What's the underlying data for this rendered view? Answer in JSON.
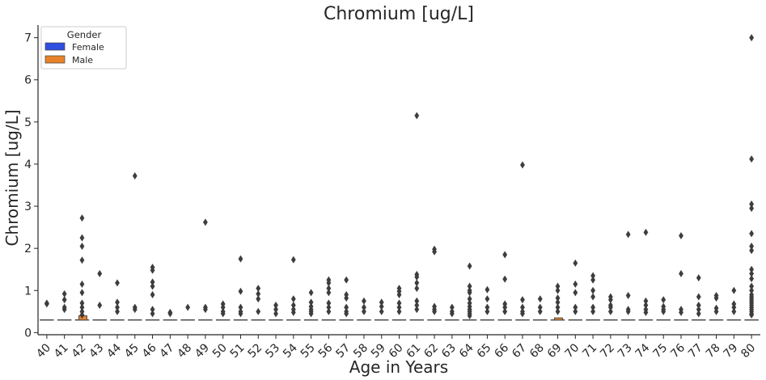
{
  "chart_data": {
    "type": "box",
    "title": "Chromium [ug/L]",
    "xlabel": "Age in Years",
    "ylabel": "Chromium [ug/L]",
    "ylim": [
      -0.05,
      7.3
    ],
    "yticks": [
      0,
      1,
      2,
      3,
      4,
      5,
      6,
      7
    ],
    "categories": [
      "40",
      "41",
      "42",
      "43",
      "44",
      "45",
      "46",
      "47",
      "48",
      "49",
      "50",
      "51",
      "52",
      "53",
      "54",
      "55",
      "56",
      "57",
      "58",
      "59",
      "60",
      "61",
      "62",
      "63",
      "64",
      "65",
      "66",
      "67",
      "68",
      "69",
      "70",
      "71",
      "72",
      "73",
      "74",
      "75",
      "76",
      "77",
      "78",
      "79",
      "80"
    ],
    "baseline": 0.3,
    "legend": {
      "title": "Gender",
      "placement": "upper left",
      "entries": [
        {
          "name": "Female",
          "color": "#2f4fe0"
        },
        {
          "name": "Male",
          "color": "#e8822a"
        }
      ]
    },
    "boxes": [
      {
        "category": "42",
        "series": "Male",
        "q1": 0.3,
        "q3": 0.4
      },
      {
        "category": "69",
        "series": "Male",
        "q1": 0.3,
        "q3": 0.35
      }
    ],
    "outliers": {
      "40": [
        0.7,
        0.68
      ],
      "41": [
        0.78,
        0.6,
        0.92,
        0.55
      ],
      "42": [
        2.72,
        2.25,
        2.05,
        1.72,
        1.15,
        0.95,
        0.7,
        0.6,
        0.5,
        0.42
      ],
      "43": [
        1.4,
        0.65
      ],
      "44": [
        1.18,
        0.72,
        0.6,
        0.5
      ],
      "45": [
        3.72,
        0.6,
        0.55
      ],
      "46": [
        1.55,
        1.48,
        1.2,
        1.1,
        0.9,
        0.55,
        0.45
      ],
      "47": [
        0.48,
        0.45
      ],
      "48": [
        0.6
      ],
      "49": [
        2.62,
        0.6,
        0.55
      ],
      "50": [
        0.68,
        0.6,
        0.5,
        0.45
      ],
      "51": [
        1.75,
        0.98,
        0.6,
        0.5,
        0.45
      ],
      "52": [
        1.05,
        0.92,
        0.8,
        0.5
      ],
      "53": [
        0.65,
        0.55,
        0.45
      ],
      "54": [
        1.73,
        0.8,
        0.65,
        0.55,
        0.48
      ],
      "55": [
        0.95,
        0.72,
        0.62,
        0.55,
        0.5,
        0.45
      ],
      "56": [
        1.25,
        1.18,
        1.05,
        0.95,
        0.7,
        0.6,
        0.5
      ],
      "57": [
        1.25,
        0.9,
        0.82,
        0.6,
        0.5,
        0.45
      ],
      "58": [
        0.75,
        0.6,
        0.5
      ],
      "59": [
        0.72,
        0.62,
        0.5
      ],
      "60": [
        1.05,
        0.98,
        0.9,
        0.7,
        0.6,
        0.5
      ],
      "61": [
        5.15,
        1.38,
        1.32,
        1.18,
        1.05,
        0.75,
        0.65,
        0.55
      ],
      "62": [
        1.98,
        1.92,
        0.62,
        0.55,
        0.5
      ],
      "63": [
        0.6,
        0.5,
        0.45
      ],
      "64": [
        1.58,
        1.1,
        1.0,
        0.95,
        0.8,
        0.7,
        0.62,
        0.55,
        0.5,
        0.45,
        0.4
      ],
      "65": [
        1.02,
        0.8,
        0.6,
        0.5
      ],
      "66": [
        1.85,
        1.27,
        0.68,
        0.6,
        0.5
      ],
      "67": [
        3.98,
        0.78,
        0.6,
        0.5,
        0.45
      ],
      "68": [
        0.8,
        0.6,
        0.5
      ],
      "69": [
        1.1,
        1.0,
        0.82,
        0.72,
        0.6,
        0.5
      ],
      "70": [
        1.65,
        1.15,
        0.95,
        0.6,
        0.5
      ],
      "71": [
        1.35,
        1.25,
        1.0,
        0.85,
        0.6,
        0.5
      ],
      "72": [
        0.85,
        0.78,
        0.65,
        0.6,
        0.5
      ],
      "73": [
        2.33,
        0.88,
        0.55,
        0.5
      ],
      "74": [
        2.38,
        0.75,
        0.65,
        0.55,
        0.48
      ],
      "75": [
        0.78,
        0.62,
        0.55,
        0.5
      ],
      "76": [
        2.3,
        1.4,
        0.55,
        0.48
      ],
      "77": [
        1.3,
        0.85,
        0.65,
        0.55,
        0.45
      ],
      "78": [
        0.88,
        0.82,
        0.58,
        0.5
      ],
      "79": [
        1.0,
        0.68,
        0.6,
        0.5
      ],
      "80": [
        7.0,
        4.12,
        3.05,
        2.95,
        2.35,
        2.05,
        1.95,
        1.5,
        1.4,
        1.28,
        1.1,
        1.0,
        0.9,
        0.85,
        0.8,
        0.75,
        0.7,
        0.65,
        0.6,
        0.55,
        0.5,
        0.45,
        0.42
      ]
    }
  }
}
